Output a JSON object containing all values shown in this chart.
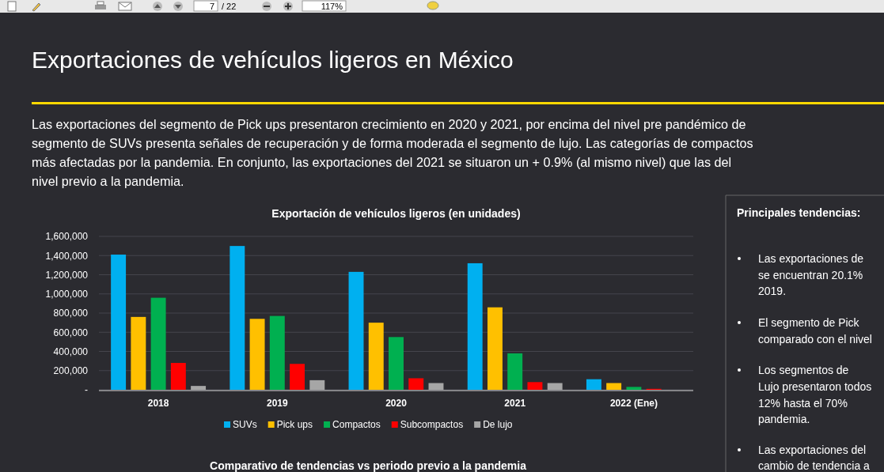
{
  "chart_data": {
    "type": "bar",
    "title": "Exportación de vehículos ligeros (en unidades)",
    "categories": [
      "2018",
      "2019",
      "2020",
      "2021",
      "2022 (Ene)"
    ],
    "series": [
      {
        "name": "SUVs",
        "color": "#00b0f0",
        "values": [
          1410000,
          1500000,
          1230000,
          1320000,
          110000
        ]
      },
      {
        "name": "Pick ups",
        "color": "#ffc000",
        "values": [
          760000,
          740000,
          700000,
          860000,
          70000
        ]
      },
      {
        "name": "Compactos",
        "color": "#00b050",
        "values": [
          960000,
          770000,
          550000,
          380000,
          30000
        ]
      },
      {
        "name": "Subcompactos",
        "color": "#ff0000",
        "values": [
          280000,
          270000,
          120000,
          80000,
          10000
        ]
      },
      {
        "name": "De lujo",
        "color": "#a6a6a6",
        "values": [
          40000,
          100000,
          70000,
          70000,
          null
        ]
      }
    ],
    "ylim": [
      0,
      1600000
    ],
    "yticks": [
      {
        "value": 0,
        "label": "-"
      },
      {
        "value": 200000,
        "label": "200,000"
      },
      {
        "value": 400000,
        "label": "400,000"
      },
      {
        "value": 600000,
        "label": "600,000"
      },
      {
        "value": 800000,
        "label": "800,000"
      },
      {
        "value": 1000000,
        "label": "1,000,000"
      },
      {
        "value": 1200000,
        "label": "1,200,000"
      },
      {
        "value": 1400000,
        "label": "1,400,000"
      },
      {
        "value": 1600000,
        "label": "1,600,000"
      }
    ],
    "grid": "y",
    "legend": "bottom",
    "annotations": [
      "Exportaciones de vehículos ligeros en México",
      "Las exportaciones del segmento de Pick ups presentaron crecimiento en 2020 y 2021, por encima del nivel pre pandémico de",
      "segmento de SUVs presenta señales de recuperación y de forma moderada el segmento de lujo. Las categorías de compactos",
      "más afectadas por la pandemia. En conjunto, las exportaciones del 2021 se situaron un + 0.9% (al mismo nivel) que las del",
      "nivel previo a la pandemia.",
      "Principales tendencias:",
      "Las exportaciones de",
      "se encuentran 20.1%",
      "2019.",
      "El segmento de Pick",
      "comparado con el nivel",
      "Los segmentos de",
      "Lujo presentaron todos",
      "12% hasta el 70%",
      "pandemia.",
      "Las exportaciones del",
      "cambio de tendencia a",
      "Comparativo de tendencias vs periodo previo a la pandemia",
      "7",
      "/ 22",
      "117%"
    ]
  }
}
